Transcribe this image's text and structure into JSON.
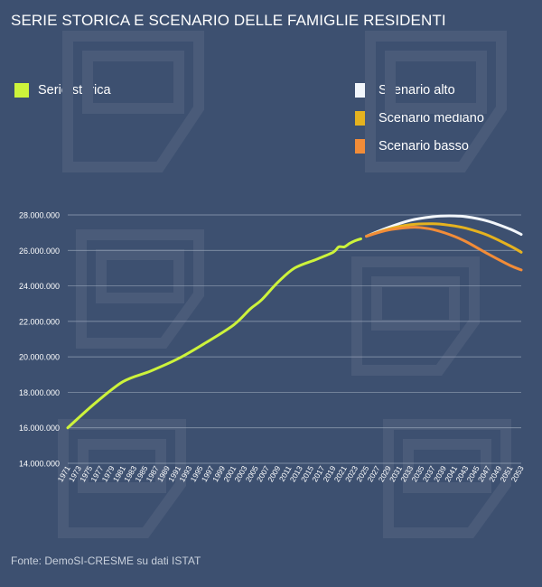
{
  "title": "SERIE STORICA E SCENARIO DELLE FAMIGLIE RESIDENTI",
  "source": "Fonte: DemoSI-CRESME su dati ISTAT",
  "colors": {
    "background": "#3d5070",
    "historical": "#cdf33b",
    "high": "#f2f6fb",
    "medium": "#e5b21f",
    "low": "#f28c38",
    "grid": "#a8b4c6",
    "watermark": "#4a5b79"
  },
  "legend": [
    {
      "label": "Serie storica",
      "color": "#cdf33b"
    },
    {
      "label": "Scenario alto",
      "color": "#f2f6fb"
    },
    {
      "label": "Scenario mediano",
      "color": "#e5b21f"
    },
    {
      "label": "Scenario basso",
      "color": "#f28c38"
    }
  ],
  "chart_data": {
    "type": "line",
    "title": "SERIE STORICA E SCENARIO DELLE FAMIGLIE RESIDENTI",
    "xlabel": "",
    "ylabel": "",
    "ylim": [
      14000000,
      28000000
    ],
    "yticks": [
      14000000,
      16000000,
      18000000,
      20000000,
      22000000,
      24000000,
      26000000,
      28000000
    ],
    "ytick_labels": [
      "14.000.000",
      "16.000.000",
      "18.000.000",
      "20.000.000",
      "22.000.000",
      "24.000.000",
      "26.000.000",
      "28.000.000"
    ],
    "xlim": [
      1971,
      2053
    ],
    "xticks": [
      1971,
      1973,
      1975,
      1977,
      1979,
      1981,
      1983,
      1985,
      1987,
      1989,
      1991,
      1993,
      1995,
      1997,
      1999,
      2001,
      2003,
      2005,
      2007,
      2009,
      2011,
      2013,
      2015,
      2017,
      2019,
      2021,
      2023,
      2025,
      2027,
      2029,
      2031,
      2033,
      2035,
      2037,
      2039,
      2041,
      2043,
      2045,
      2047,
      2049,
      2051,
      2053
    ],
    "grid": true,
    "series": [
      {
        "name": "Serie storica",
        "x": [
          1971,
          1976,
          1981,
          1986,
          1991,
          1996,
          2001,
          2004,
          2006,
          2009,
          2012,
          2016,
          2019,
          2020,
          2021,
          2022,
          2023,
          2024
        ],
        "values": [
          16000000,
          17400000,
          18600000,
          19200000,
          19900000,
          20800000,
          21800000,
          22700000,
          23200000,
          24200000,
          25000000,
          25500000,
          25900000,
          26200000,
          26200000,
          26400000,
          26550000,
          26650000
        ]
      },
      {
        "name": "Scenario alto",
        "x": [
          2025,
          2029,
          2033,
          2037,
          2040,
          2043,
          2047,
          2051,
          2053
        ],
        "values": [
          26800000,
          27300000,
          27700000,
          27900000,
          27950000,
          27900000,
          27650000,
          27200000,
          26900000
        ]
      },
      {
        "name": "Scenario mediano",
        "x": [
          2025,
          2029,
          2033,
          2037,
          2040,
          2043,
          2047,
          2051,
          2053
        ],
        "values": [
          26800000,
          27200000,
          27450000,
          27500000,
          27420000,
          27250000,
          26850000,
          26250000,
          25900000
        ]
      },
      {
        "name": "Scenario basso",
        "x": [
          2025,
          2029,
          2033,
          2035,
          2037,
          2040,
          2043,
          2047,
          2051,
          2053
        ],
        "values": [
          26800000,
          27150000,
          27300000,
          27280000,
          27180000,
          26900000,
          26500000,
          25800000,
          25150000,
          24900000
        ]
      }
    ]
  }
}
